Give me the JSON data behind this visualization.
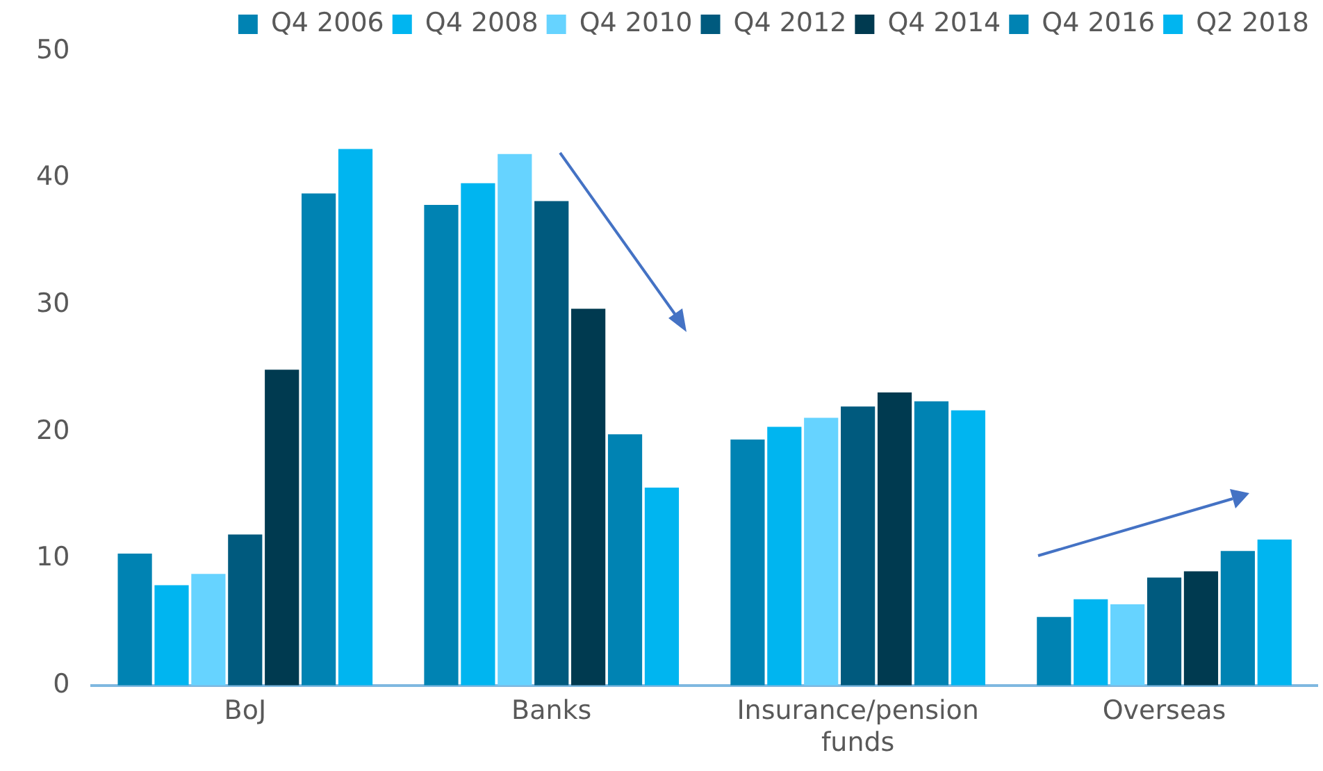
{
  "chart_data": {
    "type": "bar",
    "categories": [
      "BoJ",
      "Banks",
      "Insurance/pension funds",
      "Overseas"
    ],
    "series": [
      {
        "name": "Q4 2006",
        "color": "#0083b3",
        "values": [
          10.4,
          37.9,
          19.4,
          5.4
        ]
      },
      {
        "name": "Q4 2008",
        "color": "#00b5f0",
        "values": [
          7.9,
          39.6,
          20.4,
          6.8
        ]
      },
      {
        "name": "Q4 2010",
        "color": "#66d3ff",
        "values": [
          8.8,
          41.9,
          21.1,
          6.4
        ]
      },
      {
        "name": "Q4 2012",
        "color": "#005a7e",
        "values": [
          11.9,
          38.2,
          22.0,
          8.5
        ]
      },
      {
        "name": "Q4 2014",
        "color": "#003a50",
        "values": [
          24.9,
          29.7,
          23.1,
          9.0
        ]
      },
      {
        "name": "Q4 2016",
        "color": "#0083b3",
        "values": [
          38.8,
          19.8,
          22.4,
          10.6
        ]
      },
      {
        "name": "Q2 2018",
        "color": "#00b5f0",
        "values": [
          42.3,
          15.6,
          21.7,
          11.5
        ]
      }
    ],
    "ylim": [
      0,
      50
    ],
    "yticks": [
      0,
      10,
      20,
      30,
      40,
      50
    ],
    "grid": false,
    "legend": "top"
  }
}
